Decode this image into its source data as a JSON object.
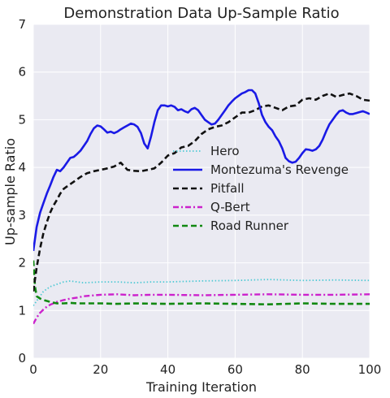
{
  "chart_data": {
    "type": "line",
    "title": "Demonstration Data Up-Sample Ratio",
    "xlabel": "Training Iteration",
    "ylabel": "Up-sample Ratio",
    "xlim": [
      0,
      100
    ],
    "ylim": [
      0,
      7
    ],
    "xticks": [
      "0",
      "20",
      "40",
      "60",
      "80",
      "100"
    ],
    "yticks": [
      "0",
      "1",
      "2",
      "3",
      "4",
      "5",
      "6",
      "7"
    ],
    "grid": true,
    "legend_position": "center-right",
    "background_color": "#eaeaf2",
    "series": [
      {
        "name": "Hero",
        "color": "#4fc9d4",
        "style": "dotted",
        "x": [
          0,
          1,
          2,
          3,
          4,
          5,
          7,
          9,
          11,
          13,
          15,
          20,
          25,
          30,
          35,
          40,
          50,
          60,
          70,
          80,
          90,
          100
        ],
        "y": [
          1.1,
          1.2,
          1.3,
          1.4,
          1.45,
          1.5,
          1.55,
          1.6,
          1.62,
          1.6,
          1.58,
          1.6,
          1.6,
          1.58,
          1.6,
          1.6,
          1.62,
          1.63,
          1.65,
          1.63,
          1.64,
          1.63
        ]
      },
      {
        "name": "Montezuma's Revenge",
        "color": "#1a1ae6",
        "style": "solid",
        "x": [
          0,
          1,
          2,
          3,
          4,
          5,
          6,
          7,
          8,
          9,
          10,
          11,
          12,
          13,
          14,
          15,
          16,
          17,
          18,
          19,
          20,
          21,
          22,
          23,
          24,
          25,
          26,
          27,
          28,
          29,
          30,
          31,
          32,
          33,
          34,
          35,
          36,
          37,
          38,
          39,
          40,
          41,
          42,
          43,
          44,
          45,
          46,
          47,
          48,
          49,
          50,
          51,
          52,
          53,
          54,
          55,
          56,
          57,
          58,
          59,
          60,
          61,
          62,
          63,
          64,
          65,
          66,
          67,
          68,
          69,
          70,
          71,
          72,
          73,
          74,
          75,
          76,
          77,
          78,
          79,
          80,
          81,
          82,
          83,
          84,
          85,
          86,
          87,
          88,
          89,
          90,
          91,
          92,
          93,
          94,
          95,
          96,
          97,
          98,
          99,
          100
        ],
        "y": [
          2.25,
          2.75,
          3.05,
          3.25,
          3.45,
          3.62,
          3.8,
          3.95,
          3.92,
          4.0,
          4.1,
          4.2,
          4.22,
          4.28,
          4.35,
          4.45,
          4.55,
          4.7,
          4.82,
          4.88,
          4.86,
          4.8,
          4.73,
          4.75,
          4.72,
          4.75,
          4.8,
          4.84,
          4.88,
          4.92,
          4.9,
          4.85,
          4.72,
          4.5,
          4.4,
          4.65,
          4.95,
          5.2,
          5.3,
          5.3,
          5.28,
          5.3,
          5.27,
          5.2,
          5.22,
          5.18,
          5.15,
          5.22,
          5.25,
          5.2,
          5.1,
          5.0,
          4.95,
          4.9,
          4.92,
          5.0,
          5.1,
          5.2,
          5.3,
          5.38,
          5.45,
          5.5,
          5.55,
          5.58,
          5.62,
          5.62,
          5.55,
          5.35,
          5.1,
          4.95,
          4.85,
          4.78,
          4.65,
          4.55,
          4.4,
          4.2,
          4.13,
          4.1,
          4.12,
          4.2,
          4.3,
          4.38,
          4.37,
          4.35,
          4.38,
          4.45,
          4.58,
          4.75,
          4.9,
          5.0,
          5.1,
          5.18,
          5.2,
          5.15,
          5.12,
          5.12,
          5.14,
          5.16,
          5.18,
          5.15,
          5.12
        ]
      },
      {
        "name": "Pitfall",
        "color": "#111111",
        "style": "dashed",
        "x": [
          0,
          1,
          2,
          3,
          4,
          5,
          6,
          7,
          8,
          9,
          10,
          12,
          14,
          16,
          18,
          20,
          22,
          24,
          26,
          28,
          30,
          32,
          34,
          36,
          38,
          40,
          42,
          44,
          46,
          48,
          50,
          52,
          54,
          56,
          58,
          60,
          62,
          64,
          66,
          68,
          70,
          72,
          74,
          76,
          78,
          80,
          82,
          84,
          86,
          88,
          90,
          92,
          94,
          96,
          98,
          100
        ],
        "y": [
          1.4,
          1.9,
          2.3,
          2.62,
          2.85,
          3.05,
          3.2,
          3.32,
          3.45,
          3.55,
          3.6,
          3.7,
          3.8,
          3.88,
          3.92,
          3.95,
          3.98,
          4.02,
          4.1,
          3.95,
          3.93,
          3.92,
          3.95,
          3.98,
          4.1,
          4.25,
          4.3,
          4.42,
          4.45,
          4.55,
          4.7,
          4.8,
          4.85,
          4.88,
          4.95,
          5.05,
          5.15,
          5.15,
          5.2,
          5.28,
          5.3,
          5.25,
          5.2,
          5.28,
          5.3,
          5.42,
          5.45,
          5.42,
          5.5,
          5.55,
          5.48,
          5.52,
          5.55,
          5.5,
          5.42,
          5.4
        ]
      },
      {
        "name": "Q-Bert",
        "color": "#cc22cc",
        "style": "dashdot",
        "x": [
          0,
          1,
          2,
          3,
          4,
          5,
          7,
          9,
          11,
          13,
          15,
          20,
          25,
          30,
          35,
          40,
          50,
          60,
          70,
          80,
          90,
          100
        ],
        "y": [
          0.72,
          0.85,
          0.95,
          1.02,
          1.08,
          1.12,
          1.18,
          1.22,
          1.25,
          1.27,
          1.3,
          1.33,
          1.34,
          1.32,
          1.33,
          1.33,
          1.32,
          1.33,
          1.34,
          1.33,
          1.33,
          1.34
        ]
      },
      {
        "name": "Road Runner",
        "color": "#118811",
        "style": "dashed",
        "x": [
          0,
          0.5,
          1,
          2,
          3,
          4,
          5,
          7,
          9,
          11,
          13,
          15,
          20,
          25,
          30,
          40,
          50,
          60,
          70,
          80,
          90,
          100
        ],
        "y": [
          2.05,
          1.5,
          1.3,
          1.25,
          1.22,
          1.2,
          1.18,
          1.15,
          1.15,
          1.16,
          1.15,
          1.15,
          1.15,
          1.14,
          1.15,
          1.14,
          1.15,
          1.14,
          1.13,
          1.15,
          1.14,
          1.14
        ]
      }
    ]
  }
}
